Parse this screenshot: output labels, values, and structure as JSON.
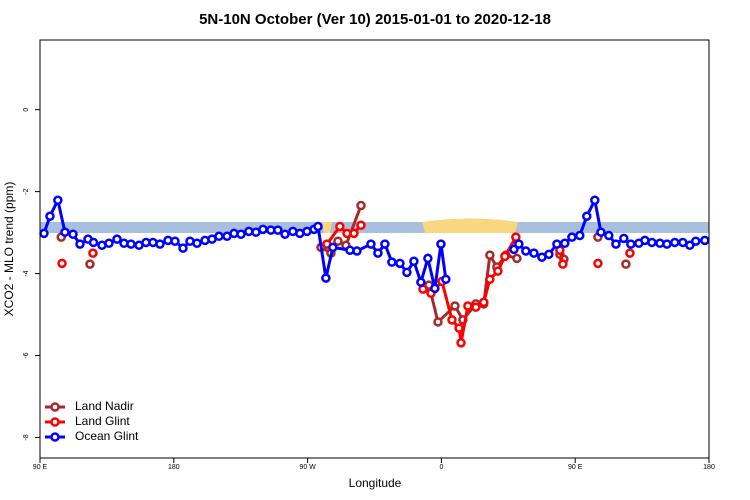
{
  "chart_data": {
    "type": "line",
    "title": "5N-10N October (Ver 10)   2015-01-01 to 2020-12-18",
    "x_label": "Longitude",
    "y_label": "XCO2 - MLO trend (ppm)",
    "xlim": [
      90,
      540
    ],
    "ylim": [
      -8.5,
      1.7
    ],
    "xticks": [
      {
        "value": 90,
        "label": "90 E"
      },
      {
        "value": 180,
        "label": "180"
      },
      {
        "value": 270,
        "label": "90 W"
      },
      {
        "value": 360,
        "label": "0"
      },
      {
        "value": 450,
        "label": "90 E"
      },
      {
        "value": 540,
        "label": "180"
      }
    ],
    "yticks": [
      0,
      -2,
      -4,
      -6,
      -8
    ],
    "legend": "bottom-left",
    "series": [
      {
        "name": "Land Nadir",
        "color": "#a52a2a",
        "x": [
          104.3,
          null,
          123.6,
          null,
          279,
          285.7,
          290.4,
          295.8,
          305.9,
          null,
          351.6,
          357.7,
          369.1,
          374.5,
          383.2,
          388.5,
          392.6,
          397.3,
          403.4,
          410.8,
          null,
          439.7,
          442.4,
          null,
          465.3,
          null,
          484.1
        ],
        "values": [
          -3.11,
          null,
          -3.77,
          null,
          -3.36,
          -3.5,
          -3.21,
          -3.31,
          -2.34,
          null,
          -4.28,
          -5.18,
          -4.79,
          -5.13,
          -4.74,
          -4.74,
          -3.55,
          -3.84,
          -3.55,
          -3.63,
          null,
          -3.53,
          -3.65,
          null,
          -3.11,
          null,
          -3.77
        ]
      },
      {
        "name": "Land Glint",
        "color": "#ff0000",
        "x": [
          104.8,
          null,
          125.6,
          null,
          283,
          291.7,
          296.5,
          301.2,
          305.9,
          null,
          347.6,
          353,
          360.4,
          367.1,
          371.9,
          373.2,
          377.8,
          383.2,
          388.5,
          392.6,
          398,
          402.7,
          410.1,
          null,
          439.7,
          441.7,
          null,
          465.3,
          null,
          486.8
        ],
        "values": [
          -3.75,
          null,
          -3.5,
          null,
          -3.28,
          -2.85,
          -3.02,
          -3.02,
          -2.82,
          null,
          -4.38,
          -4.48,
          -4.19,
          -5.13,
          -5.33,
          -5.69,
          -4.79,
          -4.82,
          -4.7,
          -4.14,
          -3.94,
          -3.58,
          -3.11,
          null,
          -3.43,
          -3.77,
          null,
          -3.75,
          null,
          -3.5
        ]
      },
      {
        "name": "Ocean Glint",
        "color": "#0000ff",
        "x": [
          92.7,
          96.7,
          102,
          106.8,
          112.2,
          116.9,
          122.3,
          126,
          131.7,
          136.4,
          141.8,
          146.5,
          151.2,
          156.6,
          161.3,
          166,
          170.7,
          176.1,
          180.8,
          186.2,
          190.9,
          195.6,
          201,
          205.7,
          210.4,
          215.8,
          220.5,
          225.2,
          230.5,
          235.3,
          240,
          245.3,
          250,
          254.8,
          260.1,
          264.8,
          269.6,
          274.3,
          277,
          282.3,
          287,
          298.5,
          303.2,
          312.6,
          317.3,
          322,
          326.7,
          332.1,
          336.8,
          341.5,
          346.2,
          350.9,
          355.6,
          359.7,
          363,
          null,
          408.8,
          412.1,
          416.8,
          422.2,
          427.6,
          432.3,
          437.7,
          443,
          447.8,
          453.1,
          457.8,
          463.2,
          467.3,
          472.6,
          477.4,
          482.7,
          487.4,
          492.8,
          496.9,
          501.6,
          507,
          511.7,
          517,
          522.4,
          527.1,
          531.1,
          537.2
        ],
        "values": [
          -3.02,
          -2.6,
          -2.21,
          -2.99,
          -3.04,
          -3.28,
          -3.16,
          -3.24,
          -3.31,
          -3.26,
          -3.16,
          -3.26,
          -3.28,
          -3.31,
          -3.24,
          -3.24,
          -3.28,
          -3.19,
          -3.21,
          -3.38,
          -3.21,
          -3.26,
          -3.19,
          -3.16,
          -3.09,
          -3.09,
          -3.02,
          -3.04,
          -2.97,
          -2.99,
          -2.92,
          -2.94,
          -2.94,
          -3.04,
          -2.97,
          -3.02,
          -2.97,
          -2.92,
          -2.85,
          -4.11,
          -3.36,
          -3.43,
          -3.45,
          -3.28,
          -3.5,
          -3.28,
          -3.72,
          -3.75,
          -3.97,
          -3.7,
          -4.21,
          -3.63,
          -4.36,
          -3.28,
          -4.14,
          null,
          -3.41,
          -3.28,
          -3.45,
          -3.5,
          -3.6,
          -3.53,
          -3.28,
          -3.26,
          -3.11,
          -3.07,
          -2.6,
          -2.21,
          -2.99,
          -3.07,
          -3.28,
          -3.14,
          -3.28,
          -3.26,
          -3.19,
          -3.24,
          -3.26,
          -3.28,
          -3.24,
          -3.24,
          -3.31,
          -3.21,
          -3.19
        ]
      }
    ]
  }
}
